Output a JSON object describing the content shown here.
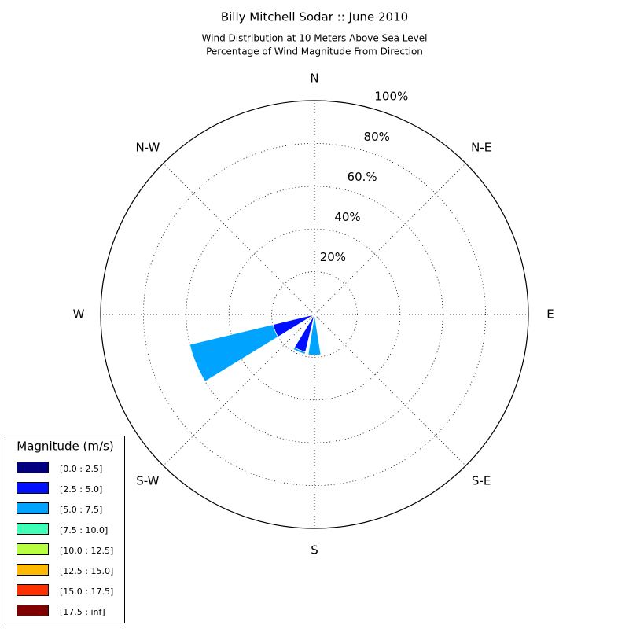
{
  "chart_data": {
    "type": "windrose",
    "title": "Billy Mitchell Sodar :: June 2010",
    "subtitle": [
      "Wind Distribution at 10 Meters Above Sea Level",
      "Percentage of Wind Magnitude From Direction"
    ],
    "categories": [
      "N",
      null,
      "N-E",
      null,
      "E",
      null,
      "S-E",
      null,
      "S",
      null,
      "S-W",
      null,
      "W",
      null,
      "N-W",
      null
    ],
    "rlim": [
      0,
      100
    ],
    "rticks": [
      {
        "value": 20,
        "label": "20%"
      },
      {
        "value": 40,
        "label": "40%"
      },
      {
        "value": 60,
        "label": "60.%"
      },
      {
        "value": 80,
        "label": "80%"
      },
      {
        "value": 100,
        "label": "100%"
      }
    ],
    "grid": true,
    "legend_title": "Magnitude (m/s)",
    "legend_position": "lower left",
    "series": [
      {
        "name": "[0.0 : 2.5]",
        "color": "#000080",
        "values": [
          0,
          0,
          0,
          0,
          0,
          0,
          0,
          0,
          0,
          0,
          0,
          0,
          0,
          0,
          0,
          0
        ]
      },
      {
        "name": "[2.5 : 5.0]",
        "color": "#0010ff",
        "values": [
          0,
          0,
          0,
          0,
          0,
          0,
          0,
          0,
          1,
          18,
          0,
          20,
          0,
          0,
          0,
          0
        ]
      },
      {
        "name": "[5.0 : 7.5]",
        "color": "#00a4ff",
        "values": [
          0,
          0,
          0,
          0,
          0,
          0,
          0,
          0,
          18,
          1,
          0,
          40,
          0,
          0,
          0,
          0
        ]
      },
      {
        "name": "[7.5 : 10.0]",
        "color": "#40ffb7",
        "values": [
          0,
          0,
          0,
          0,
          0,
          0,
          0,
          0,
          0,
          0,
          0,
          0,
          0,
          0,
          0,
          0
        ]
      },
      {
        "name": "[10.0 : 12.5]",
        "color": "#b7ff40",
        "values": [
          0,
          0,
          0,
          0,
          0,
          0,
          0,
          0,
          0,
          0,
          0,
          0,
          0,
          0,
          0,
          0
        ]
      },
      {
        "name": "[12.5 : 15.0]",
        "color": "#ffb900",
        "values": [
          0,
          0,
          0,
          0,
          0,
          0,
          0,
          0,
          0,
          0,
          0,
          0,
          0,
          0,
          0,
          0
        ]
      },
      {
        "name": "[15.0 : 17.5]",
        "color": "#ff3000",
        "values": [
          0,
          0,
          0,
          0,
          0,
          0,
          0,
          0,
          0,
          0,
          0,
          0,
          0,
          0,
          0,
          0
        ]
      },
      {
        "name": "[17.5 : inf]",
        "color": "#800000",
        "values": [
          0,
          0,
          0,
          0,
          0,
          0,
          0,
          0,
          0,
          0,
          0,
          0,
          0,
          0,
          0,
          0
        ]
      }
    ]
  }
}
